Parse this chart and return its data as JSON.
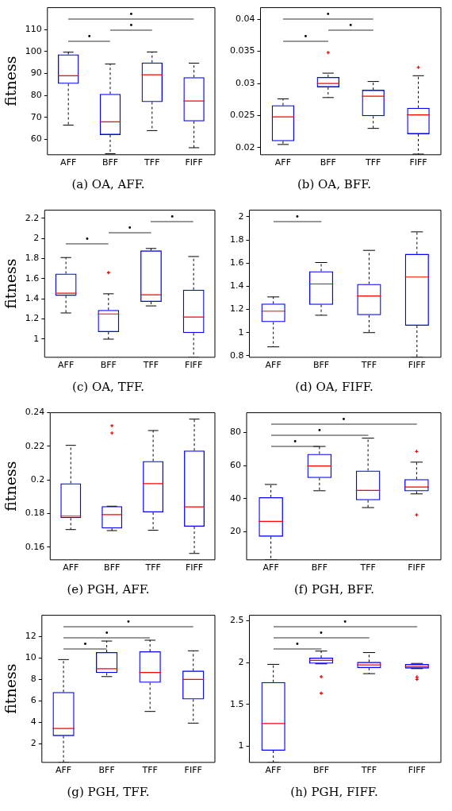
{
  "chart_data": [
    {
      "type": "box",
      "title": "(a) OA, AFF.",
      "ylabel": "fitness",
      "categories": [
        "AFF",
        "BFF",
        "TFF",
        "FIFF"
      ],
      "ylim": [
        53,
        120
      ],
      "yticks": [
        60,
        70,
        80,
        90,
        100,
        110
      ],
      "grid": false,
      "legend": false,
      "annotations": [
        "•",
        "•",
        "•"
      ],
      "series": [
        {
          "color": "#0000ff",
          "boxes": [
            {
              "low": 66.5,
              "q1": 85.3,
              "median": 89,
              "q3": 98.7,
              "high": 99.7
            },
            {
              "low": 53.5,
              "q1": 62,
              "median": 68,
              "q3": 80.7,
              "high": 94.3
            },
            {
              "low": 64,
              "q1": 77,
              "median": 89.4,
              "q3": 95,
              "high": 99.8
            },
            {
              "low": 56.2,
              "q1": 68.2,
              "median": 77.5,
              "q3": 88.3,
              "high": 94.7
            }
          ]
        }
      ]
    },
    {
      "type": "box",
      "title": "(b) OA, BFF.",
      "categories": [
        "AFF",
        "BFF",
        "TFF",
        "FIFF"
      ],
      "ylim": [
        0.0189,
        0.0418
      ],
      "yticks": [
        0.02,
        0.025,
        0.03,
        0.035,
        0.04
      ],
      "grid": false,
      "legend": false,
      "annotations": [
        "•",
        "•",
        "•"
      ],
      "series": [
        {
          "color": "#0000ff",
          "boxes": [
            {
              "low": 0.0205,
              "q1": 0.021,
              "median": 0.0248,
              "q3": 0.0266,
              "high": 0.0276
            },
            {
              "low": 0.0278,
              "q1": 0.0294,
              "median": 0.03,
              "q3": 0.031,
              "high": 0.0316,
              "outliers": [
                0.0348
              ]
            },
            {
              "low": 0.023,
              "q1": 0.0249,
              "median": 0.028,
              "q3": 0.029,
              "high": 0.0303
            },
            {
              "low": 0.019,
              "q1": 0.0221,
              "median": 0.0251,
              "q3": 0.0262,
              "high": 0.0312,
              "outliers": [
                0.0325
              ]
            }
          ]
        }
      ]
    },
    {
      "type": "box",
      "title": "(c) OA, TFF.",
      "ylabel": "fitness",
      "categories": [
        "AFF",
        "BFF",
        "TFF",
        "FIFF"
      ],
      "ylim": [
        0.82,
        2.28
      ],
      "yticks": [
        1,
        1.2,
        1.4,
        1.6,
        1.8,
        2,
        2.2
      ],
      "grid": false,
      "legend": false,
      "annotations": [
        "•",
        "•",
        "•"
      ],
      "series": [
        {
          "color": "#0000ff",
          "boxes": [
            {
              "low": 1.26,
              "q1": 1.43,
              "median": 1.456,
              "q3": 1.65,
              "high": 1.81
            },
            {
              "low": 1.0,
              "q1": 1.07,
              "median": 1.25,
              "q3": 1.29,
              "high": 1.45,
              "outliers": [
                1.66
              ]
            },
            {
              "low": 1.33,
              "q1": 1.37,
              "median": 1.44,
              "q3": 1.88,
              "high": 1.9
            },
            {
              "low": 0.82,
              "q1": 1.06,
              "median": 1.22,
              "q3": 1.49,
              "high": 1.82
            }
          ]
        }
      ]
    },
    {
      "type": "box",
      "title": "(d) OA, FIFF.",
      "categories": [
        "AFF",
        "BFF",
        "TFF",
        "FIFF"
      ],
      "ylim": [
        0.787,
        2.057
      ],
      "yticks": [
        0.8,
        1,
        1.2,
        1.4,
        1.6,
        1.8,
        2
      ],
      "grid": false,
      "legend": false,
      "annotations": [
        "•"
      ],
      "series": [
        {
          "color": "#0000ff",
          "boxes": [
            {
              "low": 0.877,
              "q1": 1.09,
              "median": 1.185,
              "q3": 1.25,
              "high": 1.308
            },
            {
              "low": 1.15,
              "q1": 1.24,
              "median": 1.42,
              "q3": 1.53,
              "high": 1.605
            },
            {
              "low": 1.0,
              "q1": 1.15,
              "median": 1.316,
              "q3": 1.42,
              "high": 1.71
            },
            {
              "low": 0.787,
              "q1": 1.06,
              "median": 1.48,
              "q3": 1.68,
              "high": 1.87
            }
          ]
        }
      ]
    },
    {
      "type": "box",
      "title": "(e) PGH, AFF.",
      "ylabel": "fitness",
      "categories": [
        "AFF",
        "BFF",
        "TFF",
        "FIFF"
      ],
      "ylim": [
        0.1525,
        0.24
      ],
      "yticks": [
        0.16,
        0.18,
        0.2,
        0.22,
        0.24
      ],
      "grid": false,
      "legend": false,
      "series": [
        {
          "color": "#0000ff",
          "boxes": [
            {
              "low": 0.1705,
              "q1": 0.1773,
              "median": 0.1785,
              "q3": 0.198,
              "high": 0.2206
            },
            {
              "low": 0.1699,
              "q1": 0.1712,
              "median": 0.1794,
              "q3": 0.1844,
              "high": 0.1844,
              "outliers": [
                0.2323,
                0.2279
              ]
            },
            {
              "low": 0.1701,
              "q1": 0.1807,
              "median": 0.1978,
              "q3": 0.2112,
              "high": 0.2294
            },
            {
              "low": 0.1563,
              "q1": 0.1722,
              "median": 0.184,
              "q3": 0.2175,
              "high": 0.2362
            }
          ]
        }
      ]
    },
    {
      "type": "box",
      "title": "(f) PGH, BFF.",
      "categories": [
        "AFF",
        "BFF",
        "TFF",
        "FIFF"
      ],
      "ylim": [
        3,
        92
      ],
      "yticks": [
        20,
        40,
        60,
        80
      ],
      "grid": false,
      "legend": false,
      "annotations": [
        "•",
        "•",
        "•"
      ],
      "series": [
        {
          "color": "#0000ff",
          "boxes": [
            {
              "low": 3,
              "q1": 17,
              "median": 26.3,
              "q3": 40.9,
              "high": 48.6
            },
            {
              "low": 44.8,
              "q1": 52.5,
              "median": 59.8,
              "q3": 67.1,
              "high": 71.6
            },
            {
              "low": 34.6,
              "q1": 39.1,
              "median": 45,
              "q3": 57,
              "high": 76.6
            },
            {
              "low": 42.9,
              "q1": 44.5,
              "median": 47.1,
              "q3": 51.8,
              "high": 62.1,
              "outliers": [
                68.6,
                30.2
              ]
            }
          ]
        }
      ]
    },
    {
      "type": "box",
      "title": "(g) PGH, TFF.",
      "ylabel": "fitness",
      "categories": [
        "AFF",
        "BFF",
        "TFF",
        "FIFF"
      ],
      "ylim": [
        0.25,
        14
      ],
      "yticks": [
        2,
        4,
        6,
        8,
        10,
        12
      ],
      "grid": false,
      "legend": false,
      "annotations": [
        "•",
        "•",
        "•"
      ],
      "series": [
        {
          "color": "#0000ff",
          "boxes": [
            {
              "low": 0.25,
              "q1": 2.71,
              "median": 3.42,
              "q3": 6.82,
              "high": 9.86
            },
            {
              "low": 8.27,
              "q1": 8.6,
              "median": 9.01,
              "q3": 10.55,
              "high": 11.59
            },
            {
              "low": 5.01,
              "q1": 7.7,
              "median": 8.66,
              "q3": 10.63,
              "high": 11.67
            },
            {
              "low": 3.92,
              "q1": 6.14,
              "median": 8,
              "q3": 8.82,
              "high": 10.68
            }
          ]
        }
      ]
    },
    {
      "type": "box",
      "title": "(h) PGH, FIFF.",
      "categories": [
        "AFF",
        "BFF",
        "TFF",
        "FIFF"
      ],
      "ylim": [
        0.806,
        2.565
      ],
      "yticks": [
        1,
        1.5,
        2,
        2.5
      ],
      "grid": false,
      "legend": false,
      "annotations": [
        "•",
        "•",
        "•"
      ],
      "series": [
        {
          "color": "#0000ff",
          "boxes": [
            {
              "low": 0.806,
              "q1": 0.946,
              "median": 1.27,
              "q3": 1.766,
              "high": 1.978
            },
            {
              "low": 1.984,
              "q1": 1.986,
              "median": 2.025,
              "q3": 2.058,
              "high": 2.137,
              "outliers": [
                1.831,
                1.633
              ]
            },
            {
              "low": 1.867,
              "q1": 1.935,
              "median": 1.971,
              "q3": 2.007,
              "high": 2.119
            },
            {
              "low": 1.927,
              "q1": 1.928,
              "median": 1.953,
              "q3": 1.982,
              "high": 1.989,
              "outliers": [
                1.827,
                1.799
              ]
            }
          ]
        }
      ]
    }
  ]
}
